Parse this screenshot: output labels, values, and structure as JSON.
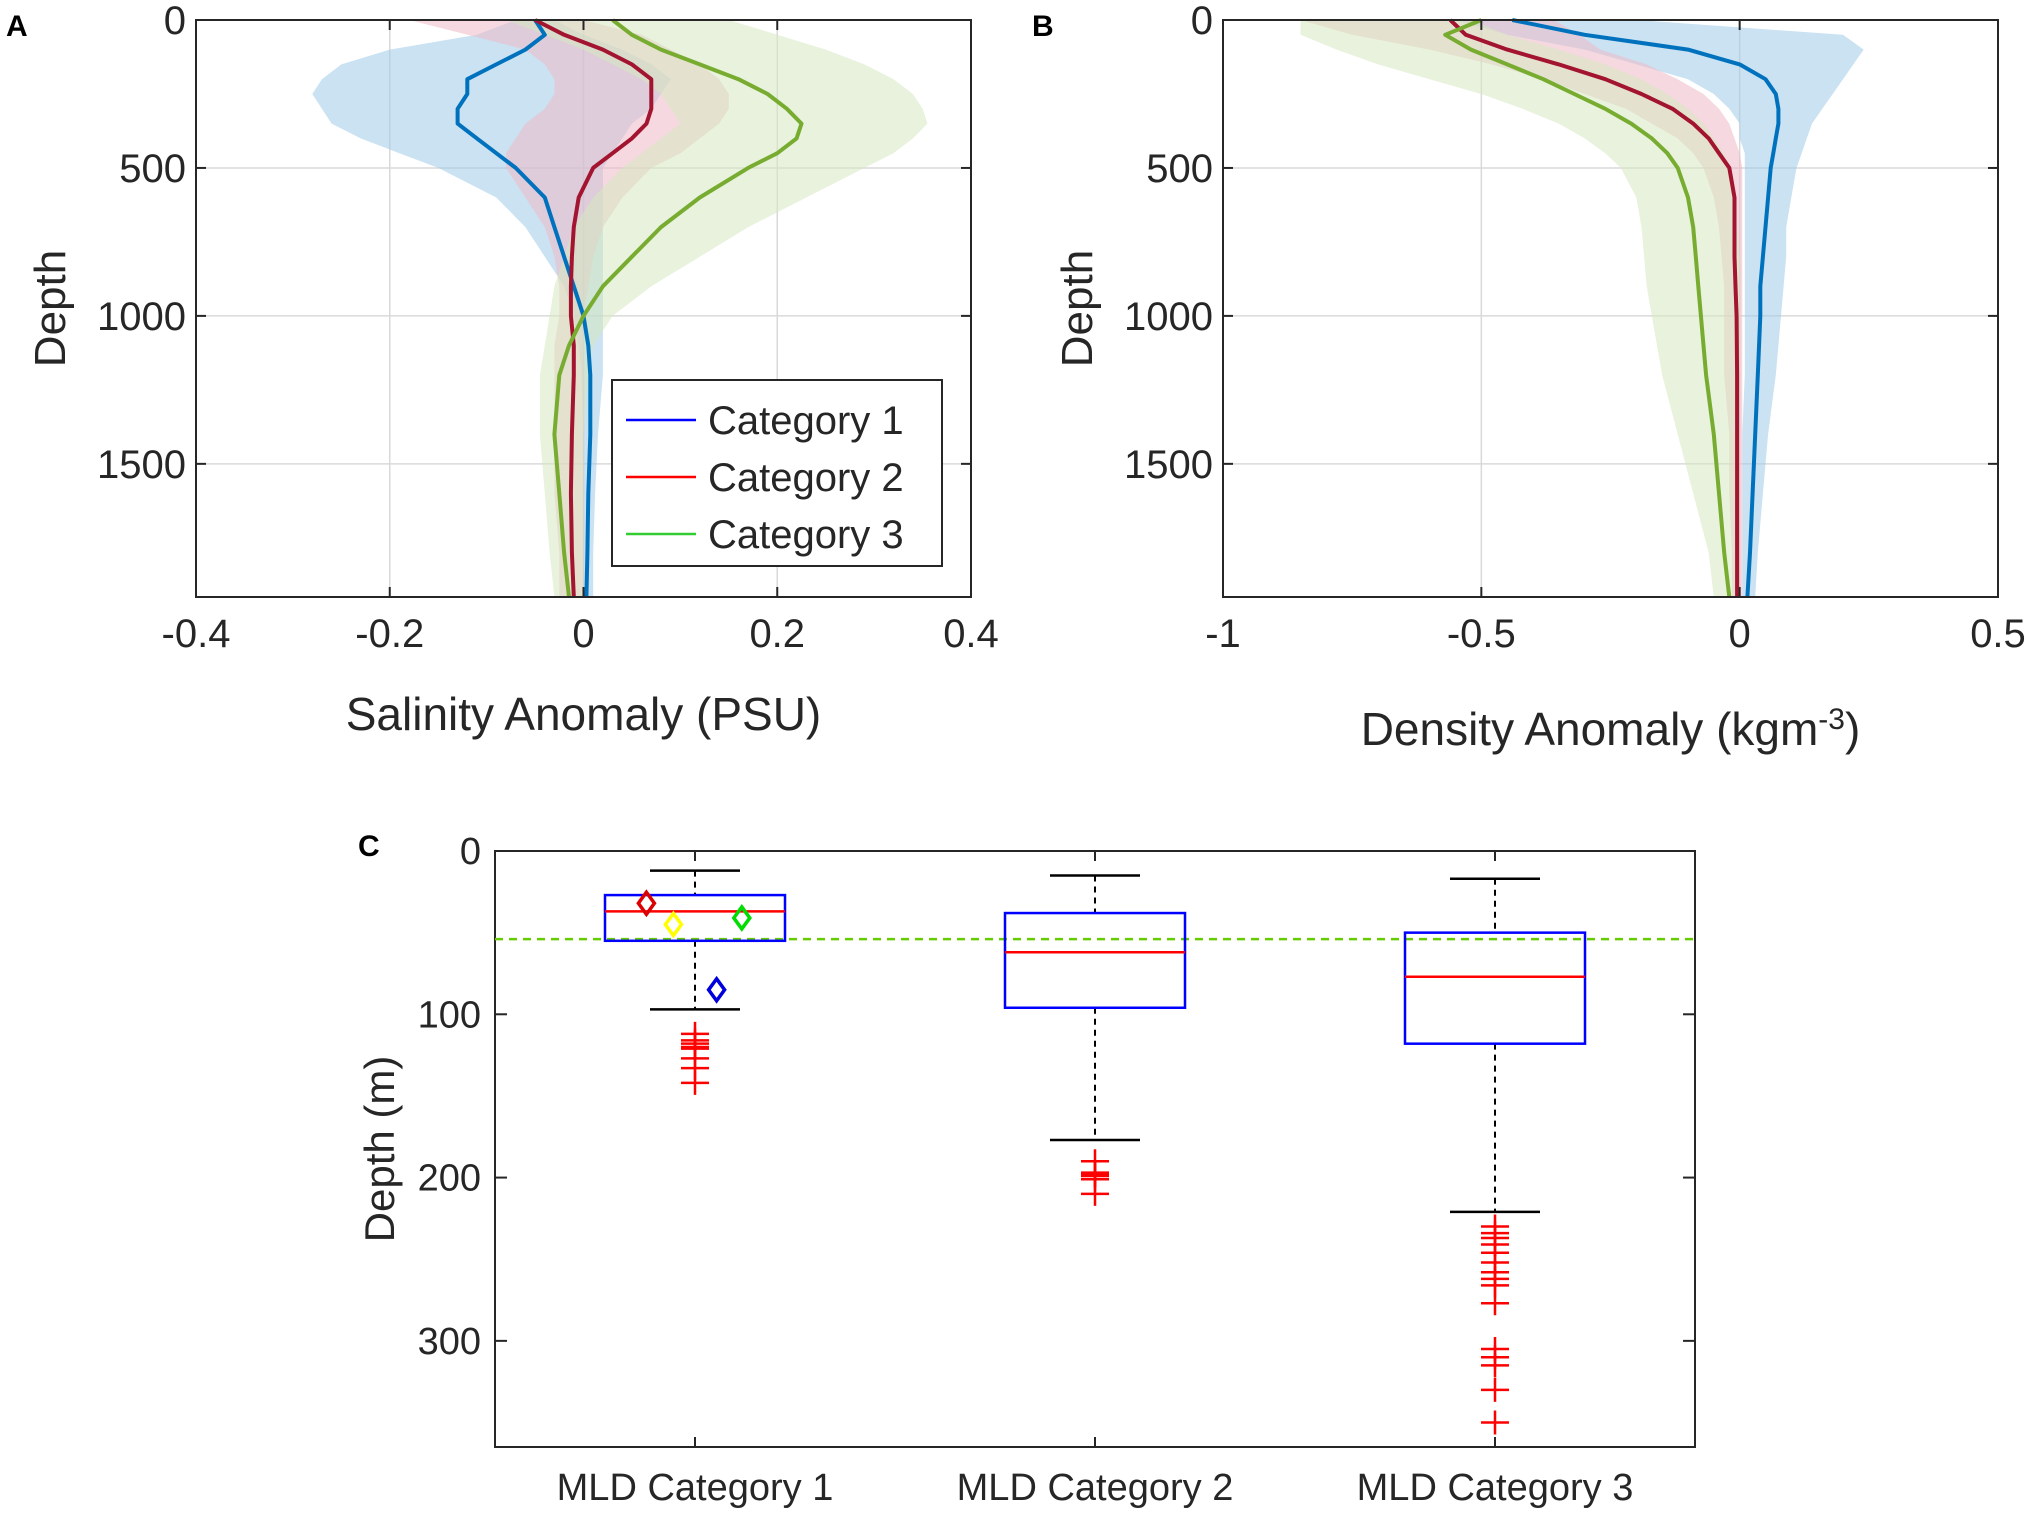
{
  "chart_data": [
    {
      "panel": "A",
      "type": "line",
      "xlabel": "Salinity Anomaly (PSU)",
      "ylabel": "Depth",
      "xlim": [
        -0.4,
        0.4
      ],
      "ylim": [
        1950,
        0
      ],
      "xticks": [
        "-0.4",
        "-0.2",
        "0",
        "0.2",
        "0.4"
      ],
      "yticks": [
        "0",
        "500",
        "1000",
        "1500"
      ],
      "grid": true,
      "legend": "inside-lower-right",
      "series": [
        {
          "name": "Category 1",
          "color": "#0072BD",
          "fill": "#9ecae8",
          "depth": [
            0,
            50,
            100,
            150,
            200,
            250,
            300,
            350,
            400,
            450,
            500,
            600,
            700,
            800,
            900,
            1000,
            1100,
            1200,
            1400,
            1600,
            1800,
            1950
          ],
          "mean": [
            -0.05,
            -0.04,
            -0.06,
            -0.09,
            -0.12,
            -0.12,
            -0.13,
            -0.13,
            -0.11,
            -0.09,
            -0.07,
            -0.04,
            -0.03,
            -0.02,
            -0.01,
            0.0,
            0.005,
            0.007,
            0.007,
            0.005,
            0.004,
            0.003
          ],
          "lower": [
            -0.07,
            -0.11,
            -0.2,
            -0.25,
            -0.27,
            -0.28,
            -0.27,
            -0.26,
            -0.23,
            -0.19,
            -0.15,
            -0.09,
            -0.06,
            -0.04,
            -0.02,
            -0.01,
            -0.005,
            -0.002,
            0.0,
            0.0,
            0.0,
            0.0
          ],
          "upper": [
            -0.03,
            0.0,
            0.04,
            0.07,
            0.09,
            0.08,
            0.07,
            0.05,
            0.04,
            0.03,
            0.02,
            0.02,
            0.02,
            0.02,
            0.02,
            0.02,
            0.02,
            0.02,
            0.015,
            0.012,
            0.01,
            0.01
          ]
        },
        {
          "name": "Category 2",
          "color": "#A2142F",
          "fill": "#eebac6",
          "depth": [
            0,
            50,
            100,
            150,
            200,
            250,
            300,
            350,
            400,
            450,
            500,
            600,
            700,
            800,
            900,
            1000,
            1100,
            1200,
            1400,
            1600,
            1800,
            1950
          ],
          "mean": [
            -0.05,
            -0.02,
            0.02,
            0.05,
            0.07,
            0.07,
            0.07,
            0.065,
            0.05,
            0.03,
            0.01,
            -0.005,
            -0.01,
            -0.012,
            -0.013,
            -0.013,
            -0.01,
            -0.01,
            -0.012,
            -0.013,
            -0.012,
            -0.01
          ],
          "lower": [
            -0.18,
            -0.12,
            -0.06,
            -0.04,
            -0.03,
            -0.03,
            -0.04,
            -0.06,
            -0.07,
            -0.08,
            -0.08,
            -0.06,
            -0.04,
            -0.03,
            -0.025,
            -0.025,
            -0.03,
            -0.03,
            -0.03,
            -0.03,
            -0.025,
            -0.025
          ],
          "upper": [
            0.0,
            0.06,
            0.09,
            0.12,
            0.14,
            0.15,
            0.15,
            0.14,
            0.12,
            0.1,
            0.07,
            0.04,
            0.02,
            0.01,
            0.005,
            0.0,
            0.0,
            0.0,
            0.0,
            0.0,
            0.0,
            0.0
          ]
        },
        {
          "name": "Category 3",
          "color": "#77AC30",
          "fill": "#d5e8bf",
          "depth": [
            0,
            50,
            100,
            150,
            200,
            250,
            300,
            350,
            400,
            450,
            500,
            600,
            700,
            800,
            900,
            1000,
            1100,
            1200,
            1400,
            1600,
            1800,
            1950
          ],
          "mean": [
            0.03,
            0.05,
            0.08,
            0.12,
            0.16,
            0.19,
            0.21,
            0.225,
            0.22,
            0.2,
            0.17,
            0.12,
            0.08,
            0.05,
            0.02,
            0.0,
            -0.015,
            -0.025,
            -0.03,
            -0.025,
            -0.02,
            -0.015
          ],
          "lower": [
            -0.08,
            -0.04,
            0.0,
            0.03,
            0.06,
            0.08,
            0.09,
            0.1,
            0.08,
            0.06,
            0.04,
            0.01,
            -0.01,
            -0.02,
            -0.03,
            -0.035,
            -0.04,
            -0.045,
            -0.045,
            -0.04,
            -0.035,
            -0.03
          ],
          "upper": [
            0.15,
            0.2,
            0.25,
            0.29,
            0.32,
            0.34,
            0.35,
            0.355,
            0.34,
            0.32,
            0.29,
            0.23,
            0.17,
            0.12,
            0.07,
            0.03,
            0.01,
            0.005,
            0.0,
            0.0,
            0.0,
            0.0
          ]
        }
      ]
    },
    {
      "panel": "B",
      "type": "line",
      "xlabel": "Density Anomaly (kgm",
      "xlabel_sup": "-3",
      "xlabel_end": ")",
      "ylabel": "Depth",
      "xlim": [
        -1,
        0.5
      ],
      "ylim": [
        1950,
        0
      ],
      "xticks": [
        "-1",
        "-0.5",
        "0",
        "0.5"
      ],
      "yticks": [
        "0",
        "500",
        "1000",
        "1500"
      ],
      "grid": true,
      "series": [
        {
          "name": "Category 1",
          "color": "#0072BD",
          "fill": "#9ecae8",
          "depth": [
            0,
            50,
            100,
            150,
            200,
            250,
            300,
            350,
            400,
            450,
            500,
            600,
            700,
            800,
            900,
            1000,
            1200,
            1400,
            1600,
            1800,
            1950
          ],
          "mean": [
            -0.44,
            -0.3,
            -0.1,
            0.0,
            0.05,
            0.07,
            0.075,
            0.075,
            0.07,
            0.065,
            0.06,
            0.055,
            0.05,
            0.045,
            0.04,
            0.04,
            0.035,
            0.03,
            0.025,
            0.02,
            0.015
          ],
          "lower": [
            -0.55,
            -0.45,
            -0.3,
            -0.2,
            -0.1,
            -0.05,
            -0.02,
            0.0,
            0.0,
            0.01,
            0.01,
            0.01,
            0.01,
            0.01,
            0.01,
            0.01,
            0.01,
            0.005,
            0.005,
            0.005,
            0.005
          ],
          "upper": [
            -0.2,
            0.2,
            0.24,
            0.22,
            0.2,
            0.18,
            0.16,
            0.14,
            0.13,
            0.12,
            0.11,
            0.1,
            0.09,
            0.09,
            0.085,
            0.08,
            0.07,
            0.055,
            0.045,
            0.035,
            0.03
          ]
        },
        {
          "name": "Category 2",
          "color": "#A2142F",
          "fill": "#eebac6",
          "depth": [
            0,
            50,
            100,
            150,
            200,
            250,
            300,
            350,
            400,
            450,
            500,
            600,
            700,
            800,
            900,
            1000,
            1200,
            1400,
            1600,
            1800,
            1950
          ],
          "mean": [
            -0.56,
            -0.53,
            -0.45,
            -0.35,
            -0.26,
            -0.19,
            -0.13,
            -0.09,
            -0.06,
            -0.04,
            -0.02,
            -0.01,
            -0.01,
            -0.01,
            -0.008,
            -0.006,
            -0.005,
            -0.005,
            -0.005,
            -0.005,
            -0.005
          ],
          "lower": [
            -0.85,
            -0.75,
            -0.6,
            -0.48,
            -0.38,
            -0.3,
            -0.22,
            -0.17,
            -0.12,
            -0.09,
            -0.07,
            -0.05,
            -0.04,
            -0.035,
            -0.03,
            -0.03,
            -0.03,
            -0.02,
            -0.02,
            -0.015,
            -0.015
          ],
          "upper": [
            -0.36,
            -0.31,
            -0.27,
            -0.18,
            -0.12,
            -0.07,
            -0.04,
            -0.02,
            -0.01,
            0.0,
            0.005,
            0.005,
            0.005,
            0.005,
            0.005,
            0.005,
            0.005,
            0.005,
            0.005,
            0.005,
            0.005
          ]
        },
        {
          "name": "Category 3",
          "color": "#77AC30",
          "fill": "#d5e8bf",
          "depth": [
            0,
            50,
            100,
            150,
            200,
            250,
            300,
            350,
            400,
            450,
            500,
            600,
            700,
            800,
            900,
            1000,
            1200,
            1400,
            1600,
            1800,
            1950
          ],
          "mean": [
            -0.5,
            -0.57,
            -0.52,
            -0.45,
            -0.38,
            -0.32,
            -0.26,
            -0.21,
            -0.17,
            -0.14,
            -0.12,
            -0.1,
            -0.09,
            -0.085,
            -0.08,
            -0.075,
            -0.065,
            -0.05,
            -0.04,
            -0.03,
            -0.02
          ],
          "lower": [
            -0.85,
            -0.85,
            -0.78,
            -0.7,
            -0.6,
            -0.5,
            -0.42,
            -0.35,
            -0.3,
            -0.26,
            -0.23,
            -0.2,
            -0.19,
            -0.185,
            -0.18,
            -0.17,
            -0.15,
            -0.12,
            -0.09,
            -0.06,
            -0.05
          ],
          "upper": [
            -0.52,
            -0.45,
            -0.35,
            -0.26,
            -0.19,
            -0.14,
            -0.1,
            -0.07,
            -0.05,
            -0.03,
            -0.02,
            -0.01,
            -0.005,
            0.0,
            0.0,
            0.0,
            0.0,
            0.0,
            0.0,
            0.0,
            0.0
          ]
        }
      ]
    },
    {
      "panel": "C",
      "type": "box",
      "ylabel": "Depth (m)",
      "ylim": [
        365,
        0
      ],
      "yticks": [
        "0",
        "100",
        "200",
        "300"
      ],
      "reference_line": {
        "value": 54,
        "color": "#66cc00",
        "style": "dashed"
      },
      "categories": [
        "MLD Category 1",
        "MLD Category 2",
        "MLD Category 3"
      ],
      "boxes": [
        {
          "whisker_min": 12,
          "q1": 27,
          "median": 37,
          "q3": 55,
          "whisker_max": 97,
          "outliers": [
            112,
            116,
            118,
            120,
            121,
            127,
            133,
            142
          ]
        },
        {
          "whisker_min": 15,
          "q1": 38,
          "median": 62,
          "q3": 96,
          "whisker_max": 177,
          "outliers": [
            190,
            197,
            198,
            199,
            201,
            210
          ]
        },
        {
          "whisker_min": 17,
          "q1": 50,
          "median": 77,
          "q3": 118,
          "whisker_max": 221,
          "outliers": [
            230,
            234,
            237,
            241,
            246,
            252,
            258,
            262,
            266,
            277,
            305,
            310,
            315,
            330,
            350
          ]
        }
      ],
      "markers": [
        {
          "category": 0,
          "offset": -0.27,
          "value": 32,
          "color": "#dd0000"
        },
        {
          "category": 0,
          "offset": -0.12,
          "value": 45,
          "color": "#ffff00"
        },
        {
          "category": 0,
          "offset": 0.26,
          "value": 41,
          "color": "#00dd00"
        },
        {
          "category": 0,
          "offset": 0.12,
          "value": 85,
          "color": "#0000dd"
        }
      ]
    }
  ],
  "panels": {
    "a": "A",
    "b": "B",
    "c": "C"
  }
}
